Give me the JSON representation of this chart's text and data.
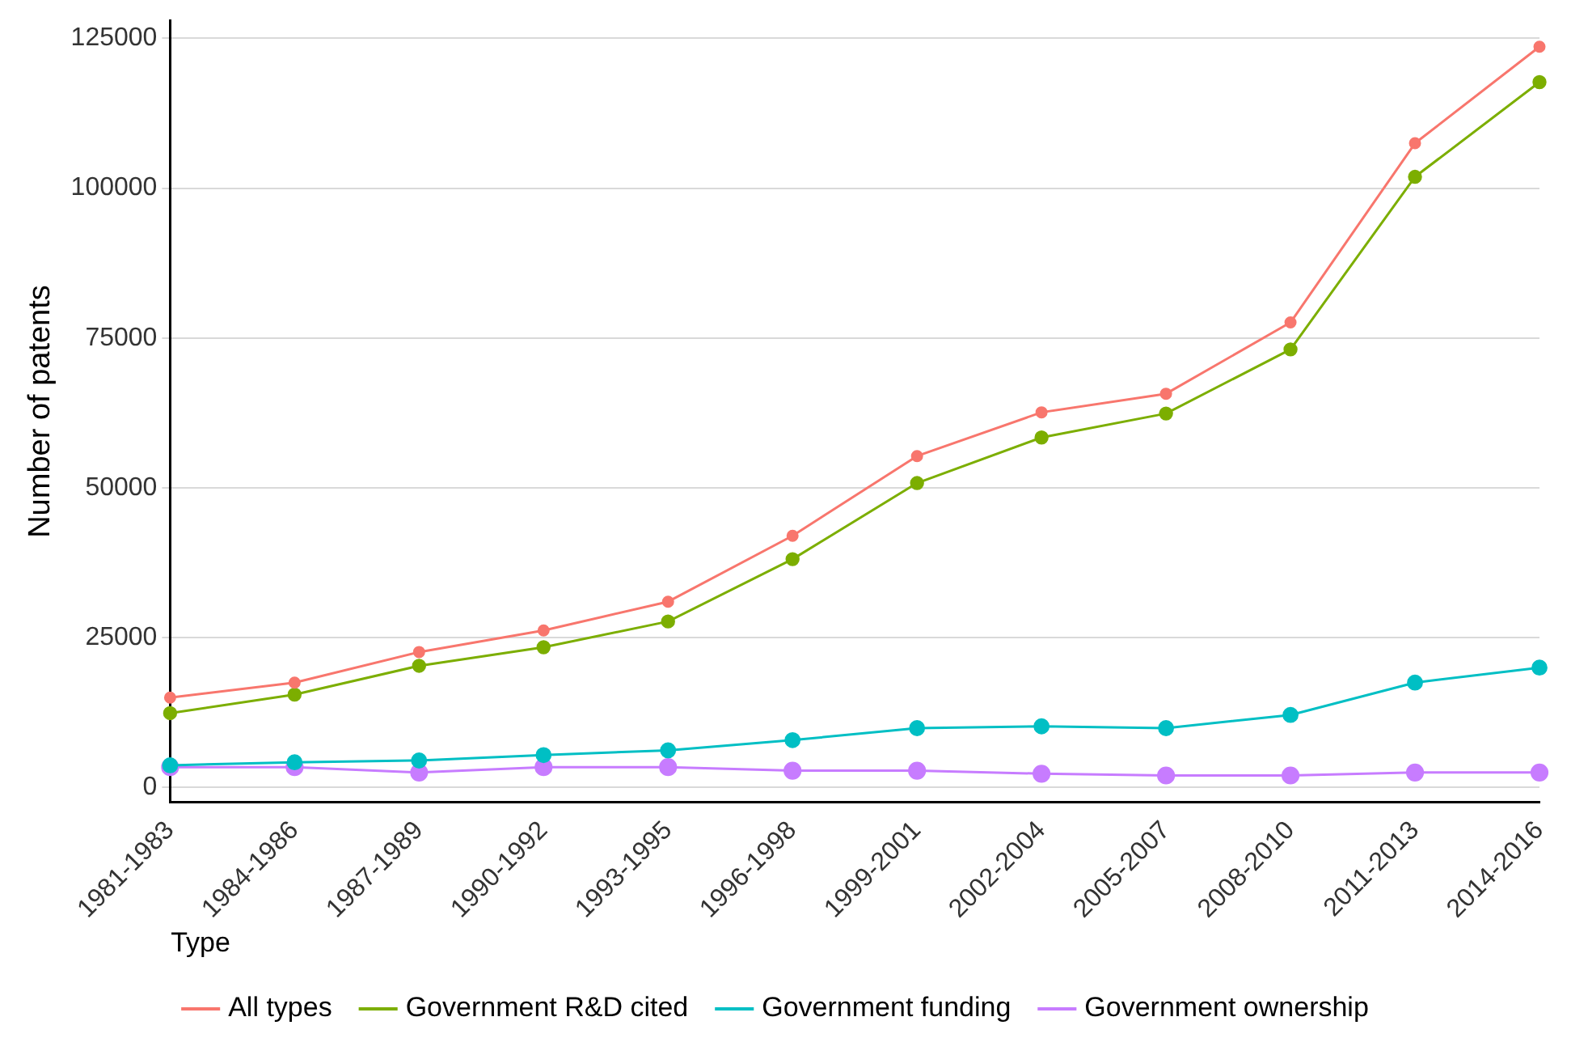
{
  "chart_data": {
    "type": "line",
    "ylabel": "Number of patents",
    "legend_title": "Type",
    "legend": "bottom",
    "grid": "y",
    "marker": "circle",
    "line_style": "solid",
    "categories": [
      "1981-1983",
      "1984-1986",
      "1987-1989",
      "1990-1992",
      "1993-1995",
      "1996-1998",
      "1999-2001",
      "2002-2004",
      "2005-2007",
      "2008-2010",
      "2011-2013",
      "2014-2016"
    ],
    "ylim": [
      -2500,
      128000
    ],
    "yticks": [
      0,
      25000,
      50000,
      75000,
      100000,
      125000
    ],
    "series": [
      {
        "name": "All types",
        "color": "#f8766d",
        "values": [
          15000,
          17500,
          22600,
          26200,
          31000,
          42000,
          55300,
          62600,
          65700,
          77600,
          107500,
          123600
        ]
      },
      {
        "name": "Government R&D cited",
        "color": "#7cae00",
        "values": [
          12400,
          15500,
          20300,
          23400,
          27700,
          38100,
          50800,
          58400,
          62400,
          73100,
          101900,
          117700
        ]
      },
      {
        "name": "Government funding",
        "color": "#00bfc4",
        "values": [
          3700,
          4200,
          4500,
          5400,
          6200,
          7900,
          9900,
          10200,
          9900,
          12100,
          17500,
          20000
        ]
      },
      {
        "name": "Government ownership",
        "color": "#c77cff",
        "values": [
          3400,
          3400,
          2500,
          3400,
          3400,
          2800,
          2800,
          2300,
          2000,
          2000,
          2500,
          2500
        ]
      }
    ]
  }
}
